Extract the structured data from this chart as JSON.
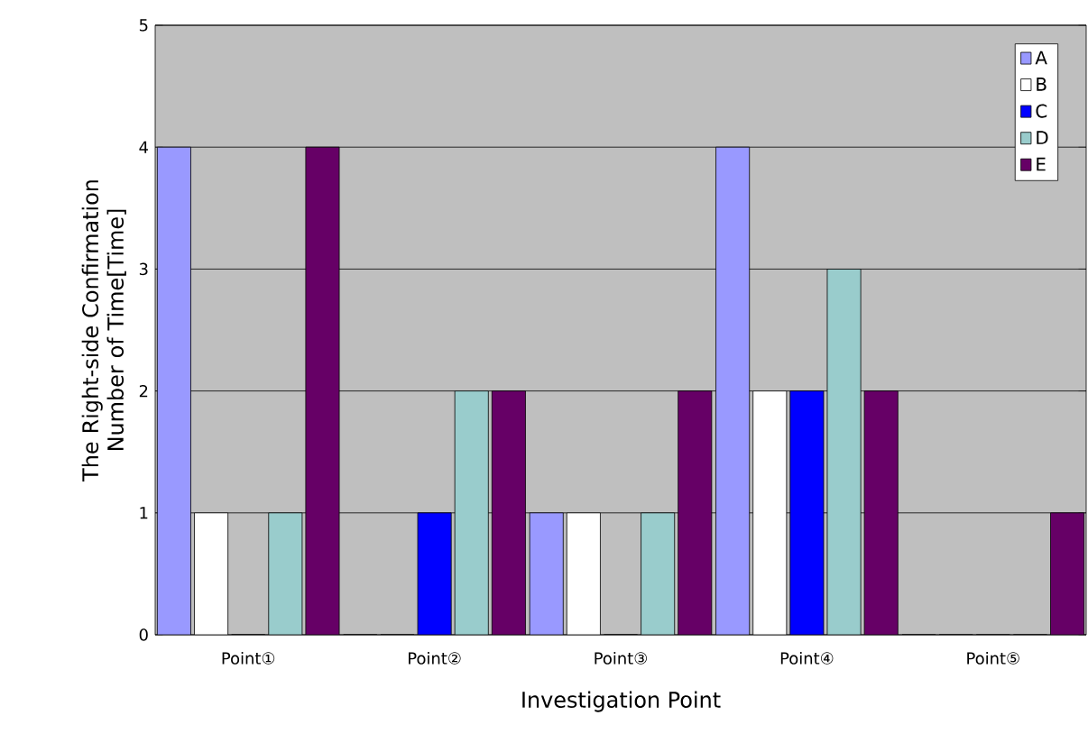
{
  "chart_data": {
    "type": "bar",
    "xlabel": "Investigation Point",
    "ylabel": "The Right-side Confirmation Number of Time[Time]",
    "categories": [
      "Point①",
      "Point②",
      "Point③",
      "Point④",
      "Point⑤"
    ],
    "series": [
      {
        "name": "A",
        "color": "#9999ff",
        "values": [
          4,
          0,
          1,
          4,
          0
        ]
      },
      {
        "name": "B",
        "color": "#ffffff",
        "values": [
          1,
          0,
          1,
          2,
          0
        ]
      },
      {
        "name": "C",
        "color": "#0000ff",
        "values": [
          0,
          1,
          0,
          2,
          0
        ]
      },
      {
        "name": "D",
        "color": "#99cccc",
        "values": [
          1,
          2,
          1,
          3,
          0
        ]
      },
      {
        "name": "E",
        "color": "#660066",
        "values": [
          4,
          2,
          2,
          2,
          1
        ]
      }
    ],
    "ylim": [
      0,
      5
    ],
    "yticks": [
      0,
      1,
      2,
      3,
      4,
      5
    ],
    "grid": "y",
    "legend": "top right"
  }
}
